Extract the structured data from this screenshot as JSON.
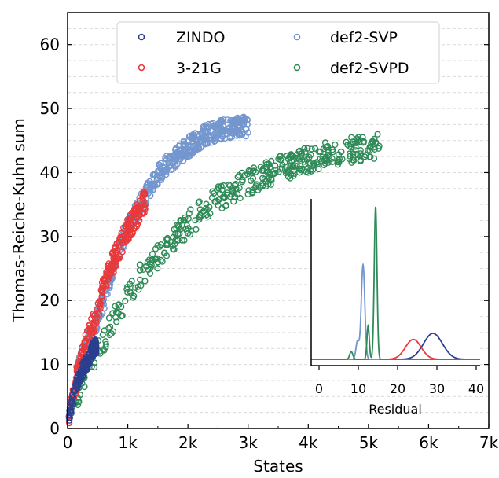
{
  "chart_data": [
    {
      "type": "scatter",
      "xlabel": "States",
      "ylabel": "Thomas-Reiche-Kuhn sum",
      "xlim": [
        0,
        7000
      ],
      "ylim": [
        0,
        65
      ],
      "x_ticks": [
        0,
        1000,
        2000,
        3000,
        4000,
        5000,
        6000,
        7000
      ],
      "x_tick_labels": [
        "0",
        "1k",
        "2k",
        "3k",
        "4k",
        "5k",
        "6k",
        "7k"
      ],
      "y_ticks": [
        0,
        10,
        20,
        30,
        40,
        50,
        60
      ],
      "y_tick_labels": [
        "0",
        "10",
        "20",
        "30",
        "40",
        "50",
        "60"
      ],
      "grid": "horizontal-dashed",
      "legend_placement": "top-center",
      "series": [
        {
          "name": "ZINDO",
          "color": "#2b3f8f",
          "marker": "open-circle",
          "trend": [
            [
              10,
              1
            ],
            [
              100,
              5
            ],
            [
              200,
              8
            ],
            [
              300,
              10
            ],
            [
              400,
              12
            ],
            [
              480,
              13
            ]
          ]
        },
        {
          "name": "3-21G",
          "color": "#e8393b",
          "marker": "open-circle",
          "trend": [
            [
              20,
              2
            ],
            [
              150,
              8
            ],
            [
              300,
              13
            ],
            [
              450,
              17
            ],
            [
              600,
              22
            ],
            [
              800,
              27
            ],
            [
              1000,
              31
            ],
            [
              1200,
              34
            ],
            [
              1300,
              36
            ]
          ]
        },
        {
          "name": "def2-SVP",
          "color": "#7396cf",
          "marker": "open-circle",
          "trend": [
            [
              30,
              3
            ],
            [
              200,
              10
            ],
            [
              400,
              15
            ],
            [
              600,
              20
            ],
            [
              800,
              27
            ],
            [
              1000,
              31
            ],
            [
              1200,
              35
            ],
            [
              1400,
              38
            ],
            [
              1600,
              41
            ],
            [
              2000,
              44
            ],
            [
              2300,
              46
            ],
            [
              2700,
              47
            ],
            [
              3000,
              47.3
            ]
          ]
        },
        {
          "name": "def2-SVPD",
          "color": "#2e8b57",
          "marker": "open-circle",
          "trend": [
            [
              50,
              3
            ],
            [
              300,
              8
            ],
            [
              600,
              14
            ],
            [
              900,
              19
            ],
            [
              1200,
              24
            ],
            [
              1600,
              28
            ],
            [
              2000,
              32
            ],
            [
              2500,
              36
            ],
            [
              3000,
              38.5
            ],
            [
              3500,
              40.5
            ],
            [
              4000,
              42
            ],
            [
              4500,
              43.2
            ],
            [
              5200,
              44.2
            ]
          ]
        }
      ]
    },
    {
      "type": "line",
      "xlabel": "Residual",
      "xlim": [
        -2,
        41
      ],
      "x_ticks": [
        0,
        10,
        20,
        30,
        40
      ],
      "x_tick_labels": [
        "0",
        "10",
        "20",
        "30",
        "40"
      ],
      "series": [
        {
          "name": "ZINDO",
          "color": "#2b3f8f",
          "peaks": [
            {
              "center": 29,
              "height": 0.17,
              "width": 2.4
            }
          ]
        },
        {
          "name": "3-21G",
          "color": "#e8393b",
          "peaks": [
            {
              "center": 24,
              "height": 0.13,
              "width": 2.0
            }
          ]
        },
        {
          "name": "def2-SVP",
          "color": "#7396cf",
          "peaks": [
            {
              "center": 11.2,
              "height": 0.62,
              "width": 0.45
            },
            {
              "center": 9.8,
              "height": 0.12,
              "width": 0.4
            }
          ]
        },
        {
          "name": "def2-SVPD",
          "color": "#2e8b57",
          "peaks": [
            {
              "center": 14.4,
              "height": 1.0,
              "width": 0.35
            },
            {
              "center": 12.5,
              "height": 0.22,
              "width": 0.3
            },
            {
              "center": 8.2,
              "height": 0.05,
              "width": 0.4
            }
          ]
        }
      ]
    }
  ],
  "legend": {
    "items": [
      {
        "label": "ZINDO",
        "color": "#2b3f8f"
      },
      {
        "label": "3-21G",
        "color": "#e8393b"
      },
      {
        "label": "def2-SVP",
        "color": "#7396cf"
      },
      {
        "label": "def2-SVPD",
        "color": "#2e8b57"
      }
    ]
  }
}
